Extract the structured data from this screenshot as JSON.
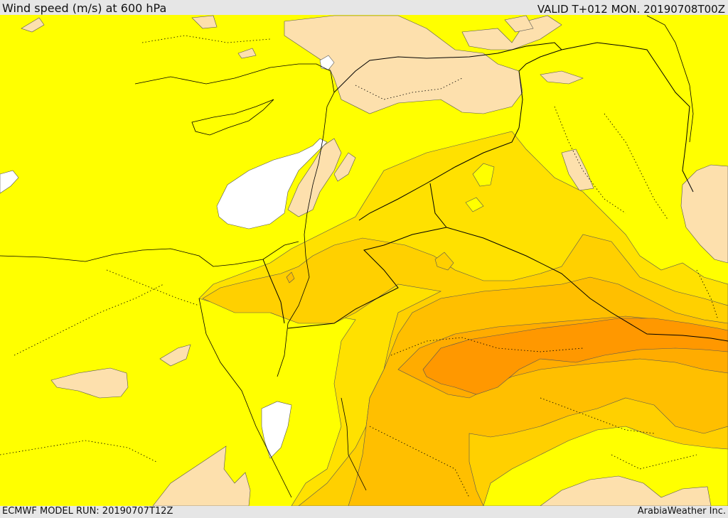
{
  "header": {
    "title": "Wind speed (m/s) at 600 hPa",
    "valid_time": "VALID T+012 MON. 20190708T00Z"
  },
  "footer": {
    "model_run": "ECMWF MODEL RUN: 20190707T12Z",
    "credit": "ArabiaWeather Inc."
  },
  "colors": {
    "background": "#ffff00",
    "light_tan": "#fde0ad",
    "white_low": "#ffffff",
    "gold": "#ffe100",
    "amber": "#ffd000",
    "light_orange": "#ffbf00",
    "orange": "#ffac00",
    "dark_orange": "#ff9800",
    "border": "#000000"
  }
}
